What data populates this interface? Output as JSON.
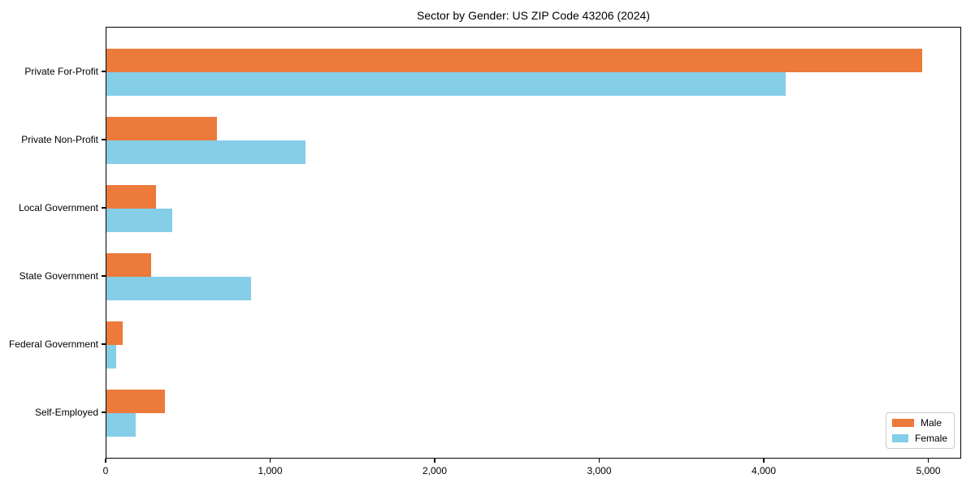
{
  "chart_data": {
    "type": "bar",
    "orientation": "horizontal",
    "title": "Sector by Gender: US ZIP Code 43206 (2024)",
    "categories": [
      "Private For-Profit",
      "Private Non-Profit",
      "Local Government",
      "State Government",
      "Federal Government",
      "Self-Employed"
    ],
    "series": [
      {
        "name": "Male",
        "color": "#EB7A3B",
        "values": [
          4960,
          670,
          300,
          270,
          100,
          355
        ]
      },
      {
        "name": "Female",
        "color": "#85CEE8",
        "values": [
          4130,
          1210,
          400,
          880,
          58,
          180
        ]
      }
    ],
    "xlabel": "",
    "ylabel": "",
    "xlim": [
      0,
      5200
    ],
    "x_ticks": [
      0,
      1000,
      2000,
      3000,
      4000,
      5000
    ],
    "x_tick_labels": [
      "0",
      "1,000",
      "2,000",
      "3,000",
      "4,000",
      "5,000"
    ],
    "grid": false,
    "legend": {
      "position": "lower right"
    }
  }
}
